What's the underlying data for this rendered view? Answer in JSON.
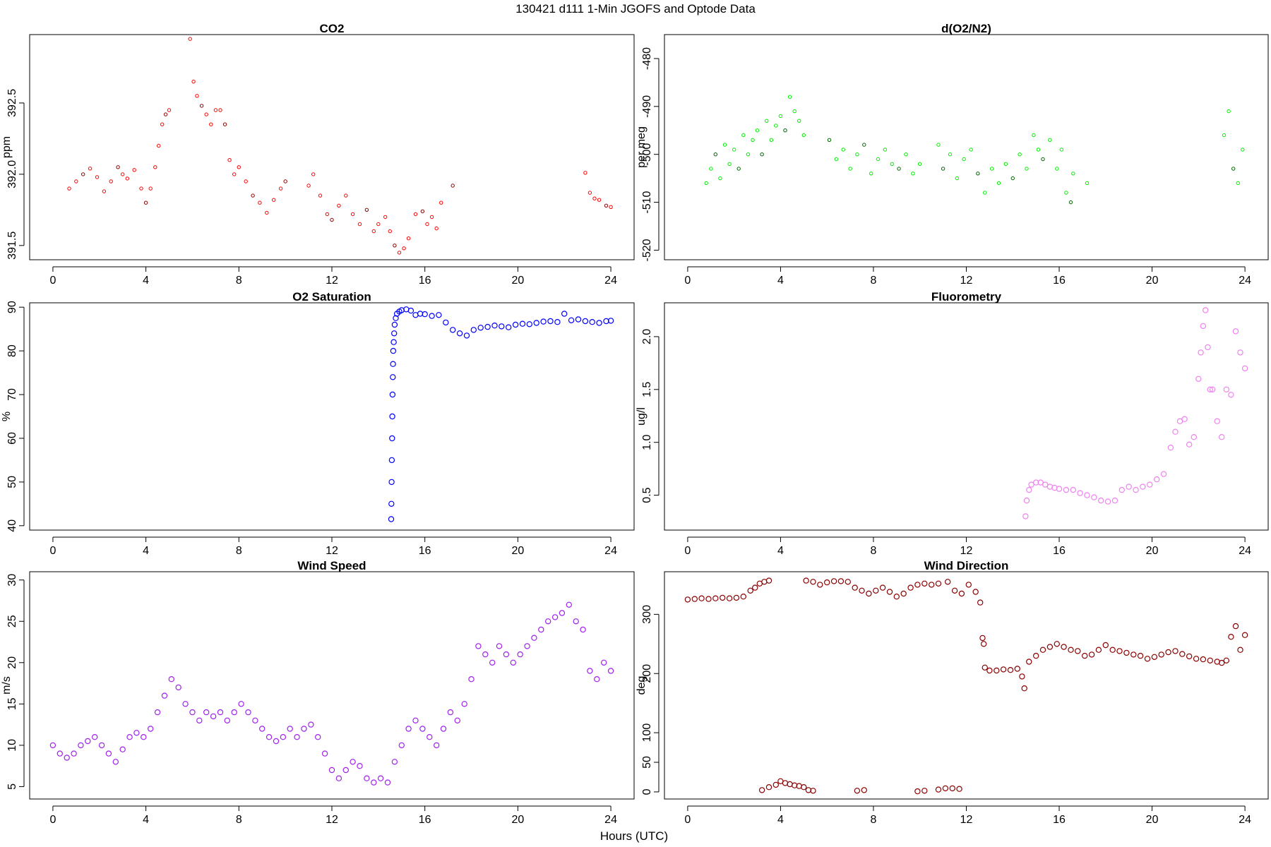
{
  "figure": {
    "title": "130421   d111   1-Min  JGOFS and Optode Data",
    "xlabel": "Hours (UTC)"
  },
  "chart_data": [
    {
      "id": "co2",
      "type": "scatter",
      "title": "CO2",
      "xlabel": "",
      "ylabel": "ppm",
      "xlim": [
        -1,
        25
      ],
      "ylim": [
        391.4,
        392.98
      ],
      "xticks": [
        0,
        4,
        8,
        12,
        16,
        20,
        24
      ],
      "yticks": [
        391.5,
        392.0,
        392.5
      ],
      "ytick_labels": [
        "391.5",
        "392.0",
        "392.5"
      ],
      "color": "#ff0000",
      "alt_color": "#8b0000",
      "marker_size": "small",
      "x": [
        0.7,
        1.0,
        1.3,
        1.6,
        1.9,
        2.2,
        2.5,
        2.8,
        3.0,
        3.2,
        3.5,
        3.8,
        4.0,
        4.2,
        4.4,
        4.55,
        4.7,
        4.85,
        5.0,
        5.9,
        6.05,
        6.2,
        6.4,
        6.6,
        6.8,
        7.0,
        7.2,
        7.4,
        7.6,
        7.8,
        8.0,
        8.3,
        8.6,
        8.9,
        9.2,
        9.5,
        9.8,
        10.0,
        11.0,
        11.2,
        11.5,
        11.8,
        12.0,
        12.3,
        12.6,
        12.9,
        13.2,
        13.5,
        13.8,
        14.0,
        14.3,
        14.5,
        14.7,
        14.9,
        15.1,
        15.3,
        15.6,
        15.9,
        16.1,
        16.3,
        16.5,
        16.7,
        17.2,
        22.9,
        23.1,
        23.3,
        23.5,
        23.8,
        24.0
      ],
      "y": [
        391.9,
        391.95,
        392.0,
        392.04,
        391.98,
        391.88,
        391.95,
        392.05,
        392.0,
        391.97,
        392.03,
        391.9,
        391.8,
        391.9,
        392.05,
        392.2,
        392.35,
        392.42,
        392.45,
        392.95,
        392.65,
        392.55,
        392.48,
        392.42,
        392.35,
        392.45,
        392.45,
        392.35,
        392.1,
        392.0,
        392.05,
        391.95,
        391.85,
        391.8,
        391.73,
        391.82,
        391.9,
        391.95,
        391.92,
        392.0,
        391.85,
        391.72,
        391.68,
        391.78,
        391.85,
        391.72,
        391.65,
        391.75,
        391.6,
        391.65,
        391.7,
        391.6,
        391.5,
        391.45,
        391.48,
        391.55,
        391.72,
        391.74,
        391.65,
        391.7,
        391.62,
        391.8,
        391.92,
        392.01,
        391.87,
        391.83,
        391.82,
        391.78,
        391.77
      ]
    },
    {
      "id": "o2n2",
      "type": "scatter",
      "title": "d(O2/N2)",
      "xlabel": "",
      "ylabel": "per meg",
      "xlim": [
        -1,
        25
      ],
      "ylim": [
        -522,
        -475
      ],
      "xticks": [
        0,
        4,
        8,
        12,
        16,
        20,
        24
      ],
      "yticks": [
        -520,
        -510,
        -500,
        -490,
        -480
      ],
      "ytick_labels": [
        "-520",
        "-510",
        "-500",
        "-490",
        "-480"
      ],
      "color": "#00ee00",
      "alt_color": "#006400",
      "marker_size": "small",
      "x": [
        0.8,
        1.0,
        1.2,
        1.4,
        1.6,
        1.8,
        2.0,
        2.2,
        2.4,
        2.6,
        2.8,
        3.0,
        3.2,
        3.4,
        3.6,
        3.8,
        4.0,
        4.2,
        4.4,
        4.6,
        4.8,
        5.0,
        6.1,
        6.4,
        6.7,
        7.0,
        7.3,
        7.6,
        7.9,
        8.2,
        8.5,
        8.8,
        9.1,
        9.4,
        9.7,
        10.0,
        10.8,
        11.0,
        11.3,
        11.6,
        11.9,
        12.2,
        12.5,
        12.8,
        13.1,
        13.4,
        13.7,
        14.0,
        14.3,
        14.6,
        14.9,
        15.1,
        15.3,
        15.6,
        15.9,
        16.1,
        16.3,
        16.5,
        16.6,
        17.2,
        23.1,
        23.3,
        23.5,
        23.7,
        23.9
      ],
      "y": [
        -506,
        -503,
        -500,
        -505,
        -498,
        -502,
        -499,
        -503,
        -496,
        -500,
        -497,
        -495,
        -500,
        -493,
        -497,
        -494,
        -492,
        -495,
        -488,
        -491,
        -493,
        -496,
        -497,
        -501,
        -499,
        -503,
        -500,
        -498,
        -504,
        -501,
        -499,
        -502,
        -503,
        -500,
        -504,
        -502,
        -498,
        -503,
        -500,
        -505,
        -501,
        -499,
        -504,
        -508,
        -503,
        -506,
        -502,
        -505,
        -500,
        -503,
        -496,
        -499,
        -501,
        -497,
        -503,
        -499,
        -508,
        -510,
        -504,
        -506,
        -496,
        -491,
        -503,
        -506,
        -499
      ]
    },
    {
      "id": "o2sat",
      "type": "scatter",
      "title": "O2 Saturation",
      "xlabel": "",
      "ylabel": "%",
      "xlim": [
        -1,
        25
      ],
      "ylim": [
        39,
        91
      ],
      "xticks": [
        0,
        4,
        8,
        12,
        16,
        20,
        24
      ],
      "yticks": [
        40,
        50,
        60,
        70,
        80,
        90
      ],
      "ytick_labels": [
        "40",
        "50",
        "60",
        "70",
        "80",
        "90"
      ],
      "color": "#0000ff",
      "marker_size": "large",
      "x": [
        14.55,
        14.56,
        14.57,
        14.58,
        14.59,
        14.6,
        14.61,
        14.62,
        14.63,
        14.64,
        14.66,
        14.68,
        14.7,
        14.75,
        14.8,
        14.9,
        15.0,
        15.2,
        15.4,
        15.6,
        15.8,
        16.0,
        16.3,
        16.6,
        16.9,
        17.2,
        17.5,
        17.8,
        18.1,
        18.4,
        18.7,
        19.0,
        19.3,
        19.6,
        19.9,
        20.2,
        20.5,
        20.8,
        21.1,
        21.4,
        21.7,
        22.0,
        22.3,
        22.6,
        22.9,
        23.2,
        23.5,
        23.8,
        24.0
      ],
      "y": [
        41.5,
        45,
        50,
        55,
        60,
        65,
        70,
        74,
        77,
        80,
        82,
        84,
        86,
        87.5,
        88.5,
        89,
        89.3,
        89.5,
        89.2,
        88.2,
        88.5,
        88.4,
        88.0,
        88.2,
        86.5,
        84.8,
        84.0,
        83.5,
        84.8,
        85.3,
        85.5,
        85.8,
        85.6,
        85.4,
        86.0,
        86.2,
        86.1,
        86.4,
        86.7,
        86.8,
        86.6,
        88.5,
        87.0,
        87.2,
        86.8,
        86.6,
        86.4,
        86.8,
        86.9
      ]
    },
    {
      "id": "fluoro",
      "type": "scatter",
      "title": "Fluorometry",
      "xlabel": "",
      "ylabel": "ug/l",
      "xlim": [
        -1,
        25
      ],
      "ylim": [
        0.17,
        2.32
      ],
      "xticks": [
        0,
        4,
        8,
        12,
        16,
        20,
        24
      ],
      "yticks": [
        0.5,
        1.0,
        1.5,
        2.0
      ],
      "ytick_labels": [
        "0.5",
        "1.0",
        "1.5",
        "2.0"
      ],
      "color": "#ee82ee",
      "marker_size": "large",
      "x": [
        14.55,
        14.6,
        14.7,
        14.8,
        15.0,
        15.2,
        15.4,
        15.6,
        15.8,
        16.0,
        16.3,
        16.6,
        16.9,
        17.2,
        17.5,
        17.8,
        18.1,
        18.4,
        18.7,
        19.0,
        19.3,
        19.6,
        19.9,
        20.2,
        20.5,
        20.8,
        21.0,
        21.2,
        21.4,
        21.6,
        21.8,
        22.0,
        22.1,
        22.2,
        22.3,
        22.4,
        22.5,
        22.6,
        22.8,
        23.0,
        23.2,
        23.4,
        23.6,
        23.8,
        24.0
      ],
      "y": [
        0.3,
        0.45,
        0.55,
        0.6,
        0.62,
        0.62,
        0.6,
        0.58,
        0.57,
        0.56,
        0.55,
        0.55,
        0.52,
        0.5,
        0.48,
        0.45,
        0.44,
        0.45,
        0.55,
        0.58,
        0.55,
        0.58,
        0.6,
        0.65,
        0.7,
        0.95,
        1.1,
        1.2,
        1.22,
        0.98,
        1.05,
        1.6,
        1.85,
        2.1,
        2.25,
        1.9,
        1.5,
        1.5,
        1.2,
        1.05,
        1.5,
        1.45,
        2.05,
        1.85,
        1.7
      ]
    },
    {
      "id": "wspd",
      "type": "scatter",
      "title": "Wind Speed",
      "xlabel": "",
      "ylabel": "m/s",
      "xlim": [
        -1,
        25
      ],
      "ylim": [
        3.5,
        31
      ],
      "xticks": [
        0,
        4,
        8,
        12,
        16,
        20,
        24
      ],
      "yticks": [
        5,
        10,
        15,
        20,
        25,
        30
      ],
      "ytick_labels": [
        "5",
        "10",
        "15",
        "20",
        "25",
        "30"
      ],
      "color": "#a020f0",
      "marker_size": "large",
      "x": [
        0.0,
        0.3,
        0.6,
        0.9,
        1.2,
        1.5,
        1.8,
        2.1,
        2.4,
        2.7,
        3.0,
        3.3,
        3.6,
        3.9,
        4.2,
        4.5,
        4.8,
        5.1,
        5.4,
        5.7,
        6.0,
        6.3,
        6.6,
        6.9,
        7.2,
        7.5,
        7.8,
        8.1,
        8.4,
        8.7,
        9.0,
        9.3,
        9.6,
        9.9,
        10.2,
        10.5,
        10.8,
        11.1,
        11.4,
        11.7,
        12.0,
        12.3,
        12.6,
        12.9,
        13.2,
        13.5,
        13.8,
        14.1,
        14.4,
        14.7,
        15.0,
        15.3,
        15.6,
        15.9,
        16.2,
        16.5,
        16.8,
        17.1,
        17.4,
        17.7,
        18.0,
        18.3,
        18.6,
        18.9,
        19.2,
        19.5,
        19.8,
        20.1,
        20.4,
        20.7,
        21.0,
        21.3,
        21.6,
        21.9,
        22.2,
        22.5,
        22.8,
        23.1,
        23.4,
        23.7,
        24.0
      ],
      "y": [
        10,
        9,
        8.5,
        9,
        10,
        10.5,
        11,
        10,
        9,
        8,
        9.5,
        11,
        11.5,
        11,
        12,
        14,
        16,
        18,
        17,
        15,
        14,
        13,
        14,
        13.5,
        14,
        13,
        14,
        15,
        14,
        13,
        12,
        11,
        10.5,
        11,
        12,
        11,
        12,
        12.5,
        11,
        9,
        7,
        6,
        7,
        8,
        7.5,
        6,
        5.5,
        6,
        5.5,
        8,
        10,
        12,
        13,
        12,
        11,
        10,
        12,
        14,
        13,
        15,
        18,
        22,
        21,
        20,
        22,
        21,
        20,
        21,
        22,
        23,
        24,
        25,
        25.5,
        26,
        27,
        25,
        24,
        19,
        18,
        20,
        19
      ]
    },
    {
      "id": "wdir",
      "type": "scatter",
      "title": "Wind Direction",
      "xlabel": "",
      "ylabel": "deg",
      "xlim": [
        -1,
        25
      ],
      "ylim": [
        -12,
        372
      ],
      "xticks": [
        0,
        4,
        8,
        12,
        16,
        20,
        24
      ],
      "yticks": [
        0,
        50,
        100,
        200,
        300
      ],
      "ytick_labels": [
        "0",
        "50",
        "100",
        "200",
        "300"
      ],
      "color": "#8b0000",
      "marker_size": "large",
      "x": [
        0.0,
        0.3,
        0.6,
        0.9,
        1.2,
        1.5,
        1.8,
        2.1,
        2.4,
        2.7,
        2.9,
        3.1,
        3.3,
        3.5,
        3.2,
        3.5,
        3.8,
        4.0,
        4.2,
        4.4,
        4.6,
        4.8,
        5.0,
        5.2,
        5.4,
        5.1,
        5.4,
        5.7,
        6.0,
        6.3,
        6.6,
        6.9,
        7.2,
        7.5,
        7.8,
        8.1,
        8.4,
        8.7,
        9.0,
        9.3,
        9.6,
        9.9,
        10.2,
        10.5,
        10.8,
        7.3,
        7.6,
        9.9,
        10.2,
        10.8,
        11.1,
        11.4,
        11.7,
        11.2,
        11.5,
        11.8,
        12.1,
        12.4,
        12.6,
        12.7,
        12.75,
        12.8,
        13.0,
        13.3,
        13.6,
        13.9,
        14.2,
        14.4,
        14.5,
        14.7,
        15.0,
        15.3,
        15.6,
        15.9,
        16.2,
        16.5,
        16.8,
        17.1,
        17.4,
        17.7,
        18.0,
        18.3,
        18.6,
        18.9,
        19.2,
        19.5,
        19.8,
        20.1,
        20.4,
        20.7,
        21.0,
        21.3,
        21.6,
        21.9,
        22.2,
        22.5,
        22.8,
        23.0,
        23.2,
        23.4,
        23.6,
        23.8,
        24.0
      ],
      "y": [
        325,
        326,
        327,
        326,
        327,
        328,
        327,
        328,
        330,
        340,
        345,
        352,
        355,
        357,
        3,
        8,
        12,
        18,
        15,
        13,
        11,
        10,
        8,
        3,
        2,
        357,
        355,
        350,
        354,
        356,
        356,
        355,
        345,
        340,
        335,
        340,
        345,
        338,
        330,
        335,
        345,
        350,
        352,
        350,
        352,
        2,
        3,
        1,
        2,
        4,
        6,
        6,
        5,
        355,
        340,
        335,
        350,
        338,
        320,
        260,
        250,
        210,
        205,
        205,
        207,
        206,
        208,
        195,
        175,
        220,
        230,
        240,
        245,
        250,
        245,
        240,
        238,
        230,
        232,
        240,
        248,
        240,
        238,
        235,
        232,
        230,
        225,
        228,
        232,
        236,
        238,
        233,
        229,
        225,
        224,
        222,
        220,
        218,
        222,
        262,
        280,
        240,
        265
      ]
    }
  ]
}
